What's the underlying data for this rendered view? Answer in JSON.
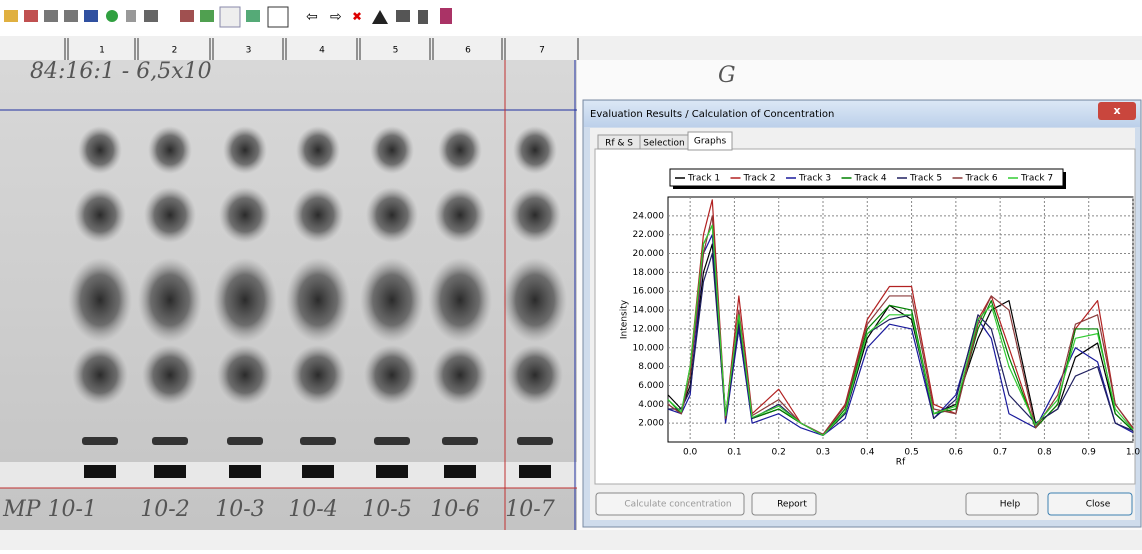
{
  "ruler": {
    "tracks": [
      "1",
      "2",
      "3",
      "4",
      "5",
      "6",
      "7"
    ]
  },
  "plate": {
    "notes": [
      "84:16:1 - 6,5x10",
      "G"
    ],
    "lane_labels": [
      "MP 10-1",
      "10-2",
      "10-3",
      "10-4",
      "10-5",
      "10-6",
      "10-7"
    ]
  },
  "dialog": {
    "title": "Evaluation Results / Calculation of Concentration",
    "tabs": [
      "Rf & S",
      "Selection",
      "Graphs"
    ],
    "buttons": [
      "Calculate concentration",
      "Report",
      "Help",
      "Close"
    ]
  },
  "chart_data": {
    "type": "line",
    "xlabel": "Rf",
    "ylabel": "Intensity",
    "grid": true,
    "legend": "top",
    "x": [
      -0.05,
      -0.02,
      0.0,
      0.03,
      0.05,
      0.08,
      0.11,
      0.14,
      0.2,
      0.25,
      0.3,
      0.35,
      0.4,
      0.45,
      0.5,
      0.55,
      0.6,
      0.65,
      0.68,
      0.72,
      0.78,
      0.83,
      0.87,
      0.92,
      0.96,
      1.0
    ],
    "series": [
      {
        "name": "Track 1",
        "color": "#000000",
        "values": [
          5000,
          3500,
          6000,
          18000,
          21000,
          3000,
          12000,
          2500,
          3500,
          2000,
          700,
          3000,
          11000,
          14500,
          13000,
          3000,
          4000,
          11000,
          14000,
          15000,
          2000,
          3500,
          9000,
          10500,
          3000,
          1200
        ]
      },
      {
        "name": "Track 2",
        "color": "#b22222",
        "values": [
          4000,
          3000,
          8000,
          22000,
          25700,
          2500,
          15500,
          3000,
          5600,
          2000,
          800,
          4000,
          13000,
          16500,
          16500,
          4000,
          3000,
          13000,
          15500,
          10000,
          1500,
          4000,
          12000,
          15000,
          4000,
          1500
        ]
      },
      {
        "name": "Track 3",
        "color": "#1a1a9c",
        "values": [
          3500,
          3000,
          5000,
          20000,
          22000,
          2000,
          12000,
          2000,
          3000,
          1500,
          700,
          2500,
          10000,
          12500,
          12000,
          2500,
          5000,
          13000,
          11000,
          3000,
          1500,
          6000,
          10000,
          8500,
          2000,
          1000
        ]
      },
      {
        "name": "Track 4",
        "color": "#008000",
        "values": [
          4500,
          3000,
          7000,
          21000,
          23000,
          2500,
          13000,
          2500,
          3500,
          2000,
          700,
          3500,
          12000,
          14500,
          14000,
          3000,
          3500,
          12000,
          15000,
          9000,
          1500,
          4000,
          12000,
          12000,
          3000,
          1200
        ]
      },
      {
        "name": "Track 5",
        "color": "#202060",
        "values": [
          3500,
          3500,
          5500,
          17000,
          20000,
          2500,
          12500,
          2500,
          4000,
          2000,
          800,
          3000,
          11500,
          13000,
          13500,
          2500,
          4500,
          13500,
          12000,
          5000,
          2000,
          3500,
          7000,
          8000,
          2000,
          1200
        ]
      },
      {
        "name": "Track 6",
        "color": "#8b3a3a",
        "values": [
          4000,
          3000,
          7000,
          20000,
          24000,
          2500,
          14000,
          2800,
          4500,
          2000,
          800,
          3800,
          12500,
          15500,
          15500,
          3500,
          3000,
          12500,
          15500,
          14000,
          1500,
          5000,
          12500,
          13500,
          4000,
          1400
        ]
      },
      {
        "name": "Track 7",
        "color": "#33cc33",
        "values": [
          4500,
          3200,
          8000,
          21000,
          23000,
          2800,
          13500,
          2600,
          3800,
          2000,
          700,
          3200,
          11500,
          13500,
          13500,
          3000,
          3800,
          13000,
          14500,
          8000,
          1800,
          4500,
          11000,
          11500,
          3500,
          1300
        ]
      }
    ],
    "xlim": [
      -0.05,
      1.0
    ],
    "ylim": [
      0,
      26000
    ],
    "xticks": [
      {
        "value": 0,
        "label": "0.0"
      },
      0.1,
      0.2,
      0.3,
      0.4,
      0.5,
      0.6,
      0.7,
      0.8,
      0.9,
      {
        "value": 1,
        "label": "1.0"
      }
    ],
    "yticks": [
      {
        "value": 2000,
        "label": "2.000"
      },
      {
        "value": 4000,
        "label": "4.000"
      },
      {
        "value": 6000,
        "label": "6.000"
      },
      {
        "value": 8000,
        "label": "8.000"
      },
      {
        "value": 10000,
        "label": "10.000"
      },
      {
        "value": 12000,
        "label": "12.000"
      },
      {
        "value": 14000,
        "label": "14.000"
      },
      {
        "value": 16000,
        "label": "16.000"
      },
      {
        "value": 18000,
        "label": "18.000"
      },
      {
        "value": 20000,
        "label": "20.000"
      },
      {
        "value": 22000,
        "label": "22.000"
      },
      {
        "value": 24000,
        "label": "24.000"
      }
    ]
  }
}
